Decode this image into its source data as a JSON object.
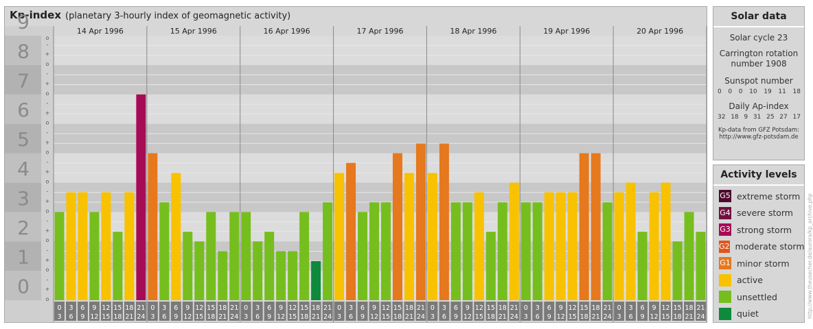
{
  "header": {
    "title": "Kp-index",
    "subtitle": "(planetary 3-hourly index of geomagnetic activity)"
  },
  "solar": {
    "title": "Solar data",
    "cycle": "Solar cycle 23",
    "carrington_line1": "Carrington rotation",
    "carrington_line2": "number 1908",
    "sunspot_label": "Sunspot number",
    "sunspot_values": [
      "0",
      "0",
      "0",
      "10",
      "19",
      "11",
      "18"
    ],
    "ap_label": "Daily Ap-index",
    "ap_values": [
      "32",
      "18",
      "9",
      "31",
      "25",
      "27",
      "17"
    ],
    "source_line1": "Kp-data from GFZ Potsdam:",
    "source_line2": "http://www.gfz-potsdam.de"
  },
  "activity": {
    "title": "Activity levels",
    "levels": [
      {
        "badge": "G5",
        "label": "extreme storm",
        "color": "#4d0a2e"
      },
      {
        "badge": "G4",
        "label": "severe storm",
        "color": "#73103f"
      },
      {
        "badge": "G3",
        "label": "strong storm",
        "color": "#a60c55"
      },
      {
        "badge": "G2",
        "label": "moderate storm",
        "color": "#e0561c"
      },
      {
        "badge": "G1",
        "label": "minor storm",
        "color": "#e6781e"
      },
      {
        "badge": "",
        "label": "active",
        "color": "#f8c200"
      },
      {
        "badge": "",
        "label": "unsettled",
        "color": "#76be1e"
      },
      {
        "badge": "",
        "label": "quiet",
        "color": "#0d8a3c"
      }
    ]
  },
  "credit": "http://www.theusecher.de/aurora/kp_archive.php",
  "chart_data": {
    "type": "bar",
    "title": "Kp-index",
    "subtitle": "(planetary 3-hourly index of geomagnetic activity)",
    "ylim": [
      0,
      9
    ],
    "y_ticks": [
      "0",
      "1",
      "2",
      "3",
      "4",
      "5",
      "6",
      "7",
      "8",
      "9"
    ],
    "y_minor_labels": [
      "o",
      "+",
      "-"
    ],
    "days": [
      "14 Apr 1996",
      "15 Apr 1996",
      "16 Apr 1996",
      "17 Apr 1996",
      "18 Apr 1996",
      "19 Apr 1996",
      "20 Apr 1996"
    ],
    "interval_top": [
      "0",
      "3",
      "6",
      "9",
      "12",
      "15",
      "18",
      "21"
    ],
    "interval_bottom": [
      "3",
      "6",
      "9",
      "12",
      "15",
      "18",
      "21",
      "24"
    ],
    "values": [
      3,
      3.67,
      3.67,
      3,
      3.67,
      2.33,
      3.67,
      7,
      5,
      3.33,
      4.33,
      2.33,
      2,
      3,
      1.67,
      3,
      3,
      2,
      2.33,
      1.67,
      1.67,
      3,
      1.33,
      3.33,
      4.33,
      4.67,
      3,
      3.33,
      3.33,
      5,
      4.33,
      5.33,
      4.33,
      5.33,
      3.33,
      3.33,
      3.67,
      2.33,
      3.33,
      4,
      3.33,
      3.33,
      3.67,
      3.67,
      3.67,
      5,
      5,
      3.33,
      3.67,
      4,
      2.33,
      3.67,
      4,
      2,
      3,
      2.33
    ],
    "colors": {
      "quiet": "#0d8a3c",
      "unsettled": "#76be1e",
      "active": "#f8c200",
      "minor_storm": "#e6781e",
      "moderate_storm": "#e0561c",
      "strong_storm": "#a60c55"
    },
    "grid": true,
    "legend": "right"
  }
}
